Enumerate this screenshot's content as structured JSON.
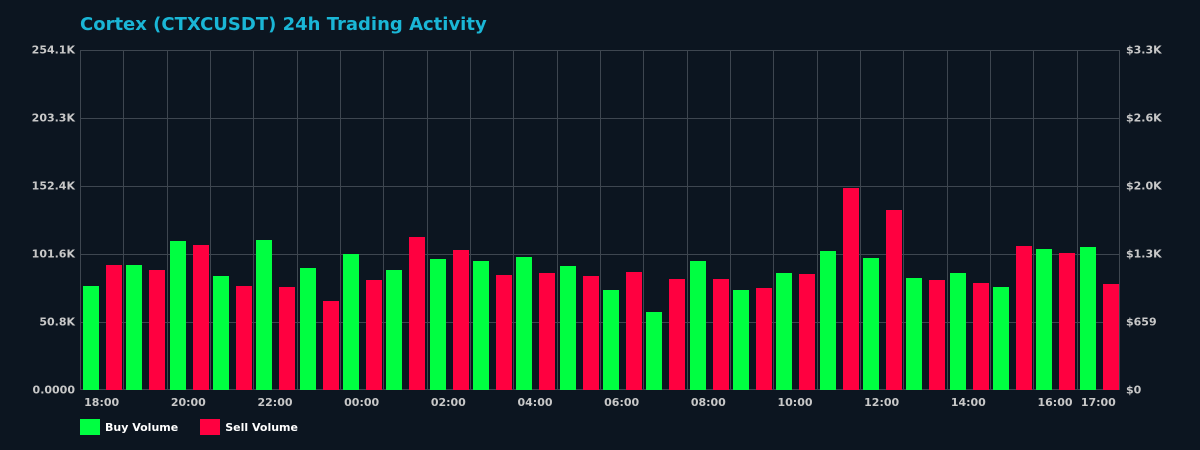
{
  "chart_data": {
    "type": "bar",
    "title": "Cortex (CTXCUSDT) 24h Trading Activity",
    "xlabel": "",
    "ylabel": "",
    "ylim": [
      0,
      254100
    ],
    "y_ticks_left": [
      "0.0000",
      "50.8K",
      "101.6K",
      "152.4K",
      "203.3K",
      "254.1K"
    ],
    "y_ticks_right": [
      "$0",
      "$659",
      "$1.3K",
      "$2.0K",
      "$2.6K",
      "$3.3K"
    ],
    "x_tick_labels": [
      {
        "label": "18:00",
        "index": 0
      },
      {
        "label": "20:00",
        "index": 2
      },
      {
        "label": "22:00",
        "index": 4
      },
      {
        "label": "00:00",
        "index": 6
      },
      {
        "label": "02:00",
        "index": 8
      },
      {
        "label": "04:00",
        "index": 10
      },
      {
        "label": "06:00",
        "index": 12
      },
      {
        "label": "08:00",
        "index": 14
      },
      {
        "label": "10:00",
        "index": 16
      },
      {
        "label": "12:00",
        "index": 18
      },
      {
        "label": "14:00",
        "index": 20
      },
      {
        "label": "16:00",
        "index": 22
      },
      {
        "label": "17:00",
        "index": 23
      }
    ],
    "categories": [
      "18:00",
      "19:00",
      "20:00",
      "21:00",
      "22:00",
      "23:00",
      "00:00",
      "01:00",
      "02:00",
      "03:00",
      "04:00",
      "05:00",
      "06:00",
      "07:00",
      "08:00",
      "09:00",
      "10:00",
      "11:00",
      "12:00",
      "13:00",
      "14:00",
      "15:00",
      "16:00",
      "17:00"
    ],
    "series": [
      {
        "name": "Buy Volume",
        "color": "#00ff41",
        "values": [
          77700,
          93400,
          111400,
          85200,
          112100,
          91200,
          101600,
          89700,
          97900,
          96400,
          99400,
          92700,
          74700,
          58300,
          96400,
          74700,
          87400,
          103900,
          98700,
          83700,
          87400,
          77000,
          105400,
          106900
        ]
      },
      {
        "name": "Sell Volume",
        "color": "#ff0040",
        "values": [
          93400,
          89700,
          108400,
          77700,
          77000,
          66500,
          82200,
          114400,
          104600,
          86000,
          87400,
          85200,
          88200,
          83000,
          83000,
          76200,
          86700,
          151000,
          134500,
          82200,
          80000,
          107600,
          102400,
          79200
        ]
      }
    ],
    "grid": true,
    "legend_position": "bottom-left"
  },
  "legend": {
    "buy_label": "Buy Volume",
    "sell_label": "Sell Volume"
  }
}
